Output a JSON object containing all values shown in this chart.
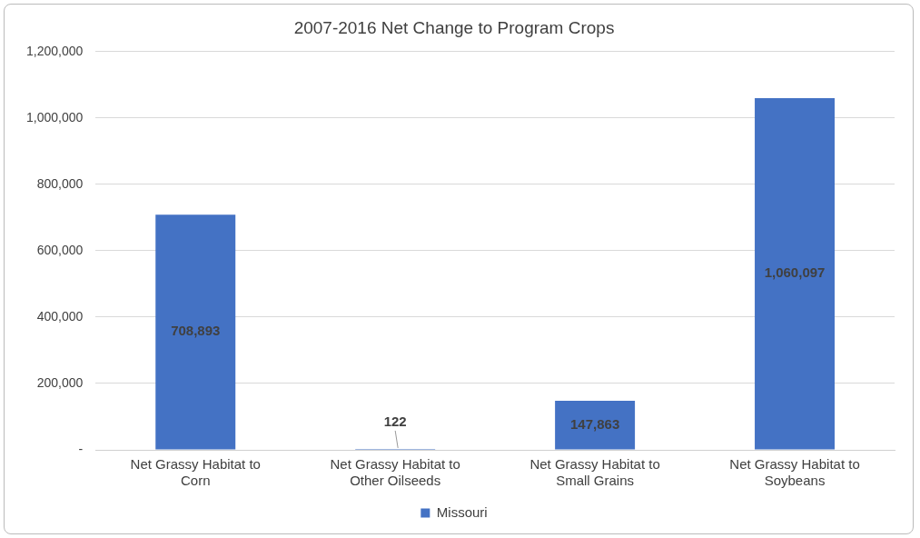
{
  "chart_data": {
    "type": "bar",
    "title": "2007-2016 Net Change to Program Crops",
    "categories": [
      "Net Grassy Habitat to Corn",
      "Net Grassy Habitat to Other Oilseeds",
      "Net Grassy Habitat to Small Grains",
      "Net Grassy Habitat to Soybeans"
    ],
    "series": [
      {
        "name": "Missouri",
        "color": "#4472c4",
        "values": [
          708893,
          122,
          147863,
          1060097
        ],
        "value_labels": [
          "708,893",
          "122",
          "147,863",
          "1,060,097"
        ]
      }
    ],
    "ylim": [
      0,
      1200000
    ],
    "yticks": [
      {
        "value": 0,
        "label": "-"
      },
      {
        "value": 200000,
        "label": "200,000"
      },
      {
        "value": 400000,
        "label": "400,000"
      },
      {
        "value": 600000,
        "label": "600,000"
      },
      {
        "value": 800000,
        "label": "800,000"
      },
      {
        "value": 1000000,
        "label": "1,000,000"
      },
      {
        "value": 1200000,
        "label": "1,200,000"
      }
    ],
    "grid": "y",
    "legend": "bottom"
  }
}
